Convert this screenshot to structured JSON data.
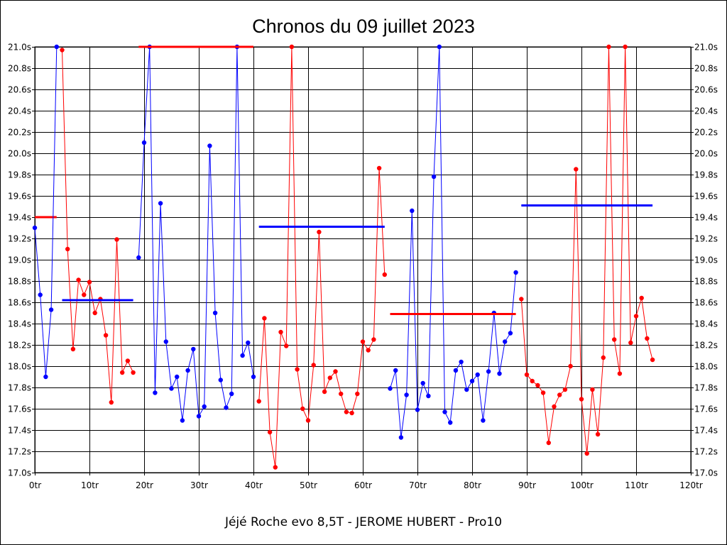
{
  "chart_data": {
    "type": "line",
    "title": "Chronos du 09 juillet 2023",
    "footer": "Jéjé Roche evo 8,5T - JEROME HUBERT - Pro10",
    "xlabel": "",
    "ylabel": "",
    "xlim": [
      0,
      120
    ],
    "ylim": [
      17.0,
      21.0
    ],
    "grid": true,
    "x_ticks": [
      "0tr",
      "10tr",
      "20tr",
      "30tr",
      "40tr",
      "50tr",
      "60tr",
      "70tr",
      "80tr",
      "90tr",
      "100tr",
      "110tr",
      "120tr"
    ],
    "y_ticks": [
      "17.0s",
      "17.2s",
      "17.4s",
      "17.6s",
      "17.8s",
      "18.0s",
      "18.2s",
      "18.4s",
      "18.6s",
      "18.8s",
      "19.0s",
      "19.2s",
      "19.4s",
      "19.6s",
      "19.8s",
      "20.0s",
      "20.2s",
      "20.4s",
      "20.6s",
      "20.8s",
      "21.0s"
    ],
    "colors": {
      "red": "#ff0000",
      "blue": "#0000ff"
    },
    "segments": [
      {
        "color": "red",
        "x": [
          0,
          4
        ],
        "y": [
          19.4,
          19.4
        ]
      },
      {
        "color": "blue",
        "x": [
          0,
          1,
          2,
          3,
          4
        ],
        "y": [
          19.3,
          18.67,
          17.9,
          18.53,
          21.0
        ]
      },
      {
        "color": "red",
        "x": [
          5,
          6,
          7,
          8,
          9,
          10,
          11,
          12,
          13,
          14,
          15,
          16,
          17,
          18
        ],
        "y": [
          20.97,
          19.1,
          18.16,
          18.81,
          18.67,
          18.79,
          18.5,
          18.63,
          18.29,
          17.66,
          19.19,
          17.94,
          18.05,
          17.94
        ]
      },
      {
        "color": "blue",
        "x": [
          5,
          18
        ],
        "y": [
          18.62,
          18.62
        ]
      },
      {
        "color": "blue",
        "x": [
          19,
          20,
          21,
          22,
          23,
          24,
          25,
          26,
          27,
          28,
          29,
          30,
          31,
          32,
          33,
          34,
          35,
          36,
          37,
          38,
          39,
          40
        ],
        "y": [
          19.02,
          20.1,
          21.0,
          17.75,
          19.53,
          18.23,
          17.79,
          17.9,
          17.49,
          17.96,
          18.16,
          17.53,
          17.62,
          20.07,
          18.5,
          17.87,
          17.61,
          17.74,
          21.0,
          18.1,
          18.22,
          17.9
        ]
      },
      {
        "color": "red",
        "x": [
          19,
          40
        ],
        "y": [
          21.0,
          21.0
        ]
      },
      {
        "color": "red",
        "x": [
          41,
          42,
          43,
          44,
          45,
          46,
          47,
          48,
          49,
          50,
          51,
          52,
          53,
          54,
          55,
          56,
          57,
          58,
          59,
          60,
          61,
          62,
          63,
          64
        ],
        "y": [
          17.67,
          18.45,
          17.38,
          17.05,
          18.32,
          18.19,
          21.0,
          17.97,
          17.6,
          17.49,
          18.01,
          19.26,
          17.76,
          17.89,
          17.95,
          17.74,
          17.57,
          17.56,
          17.74,
          18.23,
          18.15,
          18.25,
          19.86,
          18.86
        ]
      },
      {
        "color": "blue",
        "x": [
          41,
          64
        ],
        "y": [
          19.31,
          19.31
        ]
      },
      {
        "color": "blue",
        "x": [
          65,
          66,
          67,
          68,
          69,
          70,
          71,
          72,
          73,
          74,
          75,
          76,
          77,
          78,
          79,
          80,
          81,
          82,
          83,
          84,
          85,
          86,
          87,
          88
        ],
        "y": [
          17.79,
          17.96,
          17.33,
          17.73,
          19.46,
          17.59,
          17.84,
          17.72,
          19.78,
          21.0,
          17.57,
          17.47,
          17.96,
          18.04,
          17.78,
          17.86,
          17.92,
          17.49,
          17.95,
          18.5,
          17.93,
          18.23,
          18.31,
          18.88
        ]
      },
      {
        "color": "red",
        "x": [
          65,
          88
        ],
        "y": [
          18.49,
          18.49
        ]
      },
      {
        "color": "red",
        "x": [
          89,
          90,
          91,
          92,
          93,
          94,
          95,
          96,
          97,
          98,
          99,
          100,
          101,
          102,
          103,
          104,
          105,
          106,
          107,
          108,
          109,
          110,
          111,
          112,
          113
        ],
        "y": [
          18.63,
          17.92,
          17.86,
          17.82,
          17.75,
          17.28,
          17.62,
          17.73,
          17.78,
          18.0,
          19.85,
          17.69,
          17.18,
          17.78,
          17.36,
          18.08,
          21.0,
          18.25,
          17.93,
          21.0,
          18.22,
          18.47,
          18.64,
          18.26,
          18.06
        ]
      },
      {
        "color": "blue",
        "x": [
          89,
          113
        ],
        "y": [
          19.51,
          19.51
        ]
      }
    ]
  }
}
